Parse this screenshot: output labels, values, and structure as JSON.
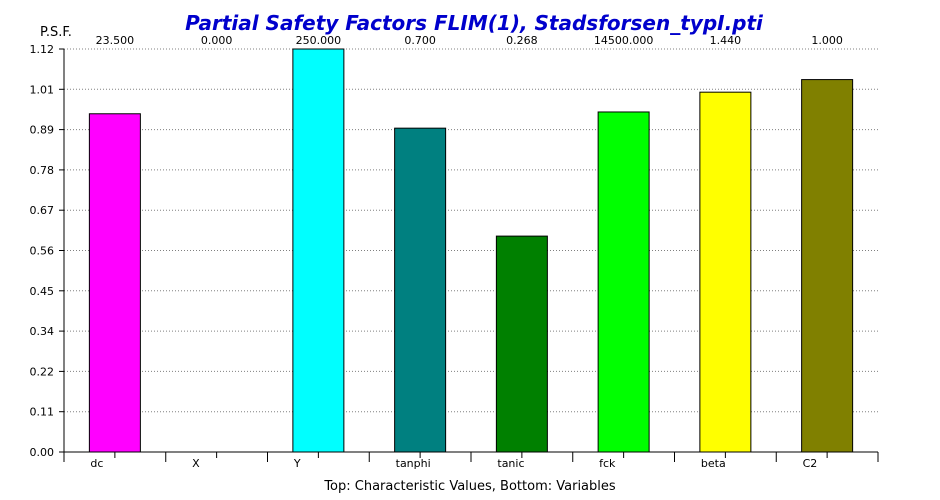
{
  "chart_data": {
    "type": "bar",
    "title": "Partial Safety Factors FLIM(1), Stadsforsen_typI.pti",
    "title_color": "#0000cc",
    "ylabel": "P.S.F.",
    "xlabel": "Top: Characteristic Values, Bottom: Variables",
    "ylim": [
      0,
      1.12
    ],
    "yticks": [
      "0.00",
      "0.11",
      "0.22",
      "0.34",
      "0.45",
      "0.56",
      "0.67",
      "0.78",
      "0.89",
      "1.01",
      "1.12"
    ],
    "categories": [
      "dc",
      "X",
      "Y",
      "tanphi",
      "tanic",
      "fck",
      "beta",
      "C2"
    ],
    "values": [
      0.94,
      0.0,
      1.12,
      0.9,
      0.6,
      0.945,
      1.0,
      1.035
    ],
    "top_labels": [
      "23.500",
      "0.000",
      "250.000",
      "0.700",
      "0.268",
      "14500.000",
      "1.440",
      "1.000"
    ],
    "colors": [
      "#ff00ff",
      "#ffffff",
      "#00ffff",
      "#008080",
      "#008000",
      "#00ff00",
      "#ffff00",
      "#808000"
    ],
    "grid": true
  }
}
